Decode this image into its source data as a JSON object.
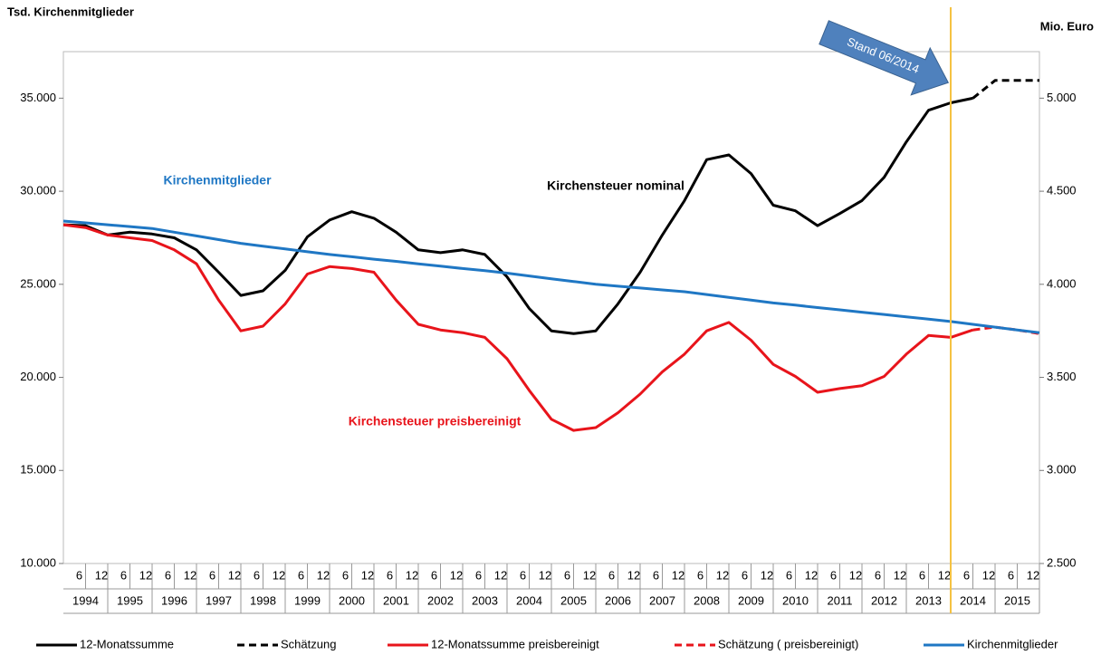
{
  "chart_data": {
    "type": "line",
    "y_label": "Tsd. Kirchenmitglieder",
    "y2_label": "Mio. Euro",
    "xlim": [
      1994,
      2016
    ],
    "ylim": [
      10000,
      37500
    ],
    "y2lim": [
      2500,
      5250
    ],
    "yticks": [
      {
        "value": 10000,
        "label": "10.000"
      },
      {
        "value": 15000,
        "label": "15.000"
      },
      {
        "value": 20000,
        "label": "20.000"
      },
      {
        "value": 25000,
        "label": "25.000"
      },
      {
        "value": 30000,
        "label": "30.000"
      },
      {
        "value": 35000,
        "label": "35.000"
      }
    ],
    "y2ticks": [
      {
        "value": 2500,
        "label": "2.500"
      },
      {
        "value": 3000,
        "label": "3.000"
      },
      {
        "value": 3500,
        "label": "3.500"
      },
      {
        "value": 4000,
        "label": "4.000"
      },
      {
        "value": 4500,
        "label": "4.500"
      },
      {
        "value": 5000,
        "label": "5.000"
      }
    ],
    "xticks": [
      {
        "value": 1994.5,
        "label": "6"
      },
      {
        "value": 1995,
        "label": "12"
      },
      {
        "value": 1995.5,
        "label": "6"
      },
      {
        "value": 1996,
        "label": "12"
      },
      {
        "value": 1996.5,
        "label": "6"
      },
      {
        "value": 1997,
        "label": "12"
      },
      {
        "value": 1997.5,
        "label": "6"
      },
      {
        "value": 1998,
        "label": "12"
      },
      {
        "value": 1998.5,
        "label": "6"
      },
      {
        "value": 1999,
        "label": "12"
      },
      {
        "value": 1999.5,
        "label": "6"
      },
      {
        "value": 2000,
        "label": "12"
      },
      {
        "value": 2000.5,
        "label": "6"
      },
      {
        "value": 2001,
        "label": "12"
      },
      {
        "value": 2001.5,
        "label": "6"
      },
      {
        "value": 2002,
        "label": "12"
      },
      {
        "value": 2002.5,
        "label": "6"
      },
      {
        "value": 2003,
        "label": "12"
      },
      {
        "value": 2003.5,
        "label": "6"
      },
      {
        "value": 2004,
        "label": "12"
      },
      {
        "value": 2004.5,
        "label": "6"
      },
      {
        "value": 2005,
        "label": "12"
      },
      {
        "value": 2005.5,
        "label": "6"
      },
      {
        "value": 2006,
        "label": "12"
      },
      {
        "value": 2006.5,
        "label": "6"
      },
      {
        "value": 2007,
        "label": "12"
      },
      {
        "value": 2007.5,
        "label": "6"
      },
      {
        "value": 2008,
        "label": "12"
      },
      {
        "value": 2008.5,
        "label": "6"
      },
      {
        "value": 2009,
        "label": "12"
      },
      {
        "value": 2009.5,
        "label": "6"
      },
      {
        "value": 2010,
        "label": "12"
      },
      {
        "value": 2010.5,
        "label": "6"
      },
      {
        "value": 2011,
        "label": "12"
      },
      {
        "value": 2011.5,
        "label": "6"
      },
      {
        "value": 2012,
        "label": "12"
      },
      {
        "value": 2012.5,
        "label": "6"
      },
      {
        "value": 2013,
        "label": "12"
      },
      {
        "value": 2013.5,
        "label": "6"
      },
      {
        "value": 2014,
        "label": "12"
      },
      {
        "value": 2014.5,
        "label": "6"
      },
      {
        "value": 2015,
        "label": "12"
      },
      {
        "value": 2015.5,
        "label": "6"
      },
      {
        "value": 2016,
        "label": "12"
      }
    ],
    "years": [
      "1994",
      "1995",
      "1996",
      "1997",
      "1998",
      "1999",
      "2000",
      "2001",
      "2002",
      "2003",
      "2004",
      "2005",
      "2006",
      "2007",
      "2008",
      "2009",
      "2010",
      "2011",
      "2012",
      "2013",
      "2014",
      "2015"
    ],
    "x": [
      1994,
      1994.5,
      1995,
      1995.5,
      1996,
      1996.5,
      1997,
      1997.5,
      1998,
      1998.5,
      1999,
      1999.5,
      2000,
      2000.5,
      2001,
      2001.5,
      2002,
      2002.5,
      2003,
      2003.5,
      2004,
      2004.5,
      2005,
      2005.5,
      2006,
      2006.5,
      2007,
      2007.5,
      2008,
      2008.5,
      2009,
      2009.5,
      2010,
      2010.5,
      2011,
      2011.5,
      2012,
      2012.5,
      2013,
      2013.5,
      2014,
      2014.5,
      2015,
      2015.5,
      2016
    ],
    "series": [
      {
        "name": "12-Monatssumme",
        "color": "#000000",
        "dashed": false,
        "axis": "y2",
        "values": [
          4320,
          4315,
          4265,
          4280,
          4270,
          4250,
          4185,
          4065,
          3940,
          3965,
          4075,
          4255,
          4345,
          4390,
          4355,
          4280,
          4185,
          4170,
          4185,
          4160,
          4040,
          3870,
          3750,
          3735,
          3750,
          3895,
          4065,
          4265,
          4450,
          4670,
          4695,
          4595,
          4425,
          4395,
          4315,
          4380,
          4450,
          4575,
          4765,
          4935,
          4975,
          5000,
          null,
          null,
          null
        ]
      },
      {
        "name": "Schätzung",
        "color": "#000000",
        "dashed": true,
        "axis": "y2",
        "values": [
          null,
          null,
          null,
          null,
          null,
          null,
          null,
          null,
          null,
          null,
          null,
          null,
          null,
          null,
          null,
          null,
          null,
          null,
          null,
          null,
          null,
          null,
          null,
          null,
          null,
          null,
          null,
          null,
          null,
          null,
          null,
          null,
          null,
          null,
          null,
          null,
          null,
          null,
          null,
          null,
          null,
          5000,
          5095,
          5095,
          5095
        ]
      },
      {
        "name": "12-Monatssumme preisbereinigt",
        "color": "#e8141b",
        "dashed": false,
        "axis": "y2",
        "values": [
          4320,
          4305,
          4265,
          4250,
          4235,
          4185,
          4110,
          3915,
          3750,
          3775,
          3895,
          4055,
          4095,
          4085,
          4065,
          3915,
          3785,
          3755,
          3740,
          3715,
          3600,
          3430,
          3275,
          3215,
          3230,
          3310,
          3410,
          3530,
          3625,
          3750,
          3795,
          3700,
          3570,
          3505,
          3420,
          3440,
          3455,
          3505,
          3625,
          3725,
          3715,
          3755,
          null,
          null,
          null
        ]
      },
      {
        "name": "Schätzung ( preisbereinigt)",
        "color": "#e8141b",
        "dashed": true,
        "axis": "y2",
        "values": [
          null,
          null,
          null,
          null,
          null,
          null,
          null,
          null,
          null,
          null,
          null,
          null,
          null,
          null,
          null,
          null,
          null,
          null,
          null,
          null,
          null,
          null,
          null,
          null,
          null,
          null,
          null,
          null,
          null,
          null,
          null,
          null,
          null,
          null,
          null,
          null,
          null,
          null,
          null,
          null,
          null,
          3755,
          3770,
          3755,
          3735
        ]
      },
      {
        "name": "Kirchenmitglieder",
        "color": "#1f77c4",
        "dashed": false,
        "axis": "y",
        "values": [
          28400,
          28300,
          28200,
          28100,
          28000,
          27800,
          27600,
          27400,
          27200,
          27050,
          26900,
          26750,
          26600,
          26480,
          26350,
          26230,
          26100,
          25980,
          25850,
          25730,
          25600,
          25450,
          25300,
          25150,
          25000,
          24900,
          24800,
          24700,
          24600,
          24450,
          24300,
          24150,
          24000,
          23880,
          23750,
          23630,
          23500,
          23380,
          23250,
          23130,
          23000,
          22850,
          22700,
          22550,
          22400
        ]
      }
    ],
    "reference_line": {
      "x": 2014,
      "color": "#f5c242",
      "label": "Stand 06/2014"
    },
    "annotations": [
      {
        "text": "Kirchenmitglieder",
        "color": "#1f77c4"
      },
      {
        "text": "Kirchensteuer nominal",
        "color": "#000000"
      },
      {
        "text": "Kirchensteuer preisbereinigt",
        "color": "#e8141b"
      }
    ]
  }
}
